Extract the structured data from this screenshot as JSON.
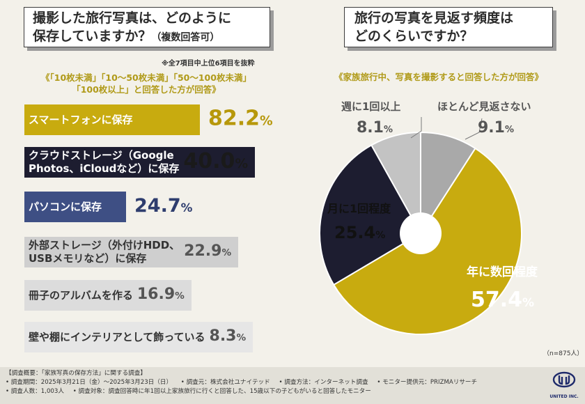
{
  "left": {
    "question_line1": "撮影した旅行写真は、どのように",
    "question_line2": "保存していますか？",
    "question_suffix": "（複数回答可）",
    "note": "※全7項目中上位6項目を抜粋",
    "filter_line1": "《「10枚未満」「10～50枚未満」「50～100枚未満」",
    "filter_line2": "「100枚以上」と回答した方が回答》"
  },
  "chart_data": [
    {
      "type": "bar",
      "orientation": "horizontal",
      "categories": [
        "スマートフォンに保存",
        "クラウドストレージ（Google Photos、iCloudなど）に保存",
        "パソコンに保存",
        "外部ストレージ（外付けHDD、USBメモリなど）に保存",
        "冊子のアルバムを作る",
        "壁や棚にインテリアとして飾っている"
      ],
      "values": [
        82.2,
        40.0,
        24.7,
        22.9,
        16.9,
        8.3
      ],
      "unit": "%",
      "bars": [
        {
          "line1": "スマートフォンに保存",
          "line2": "",
          "value": "82.2",
          "color": "#c8ab0f"
        },
        {
          "line1": "クラウドストレージ（Google",
          "line2": "Photos、iCloudなど）に保存",
          "value": "40.0",
          "color": "#1d1d30"
        },
        {
          "line1": "パソコンに保存",
          "line2": "",
          "value": "24.7",
          "color": "#3e4f84"
        },
        {
          "line1": "外部ストレージ（外付けHDD、",
          "line2": "USBメモリなど）に保存",
          "value": "22.9",
          "color": "#cfcfcf"
        },
        {
          "line1": "冊子のアルバムを作る",
          "line2": "",
          "value": "16.9",
          "color": "#dcdcdc"
        },
        {
          "line1": "壁や棚にインテリアとして飾っている",
          "line2": "",
          "value": "8.3",
          "color": "#e6e6e6"
        }
      ]
    },
    {
      "type": "pie",
      "donut": true,
      "title": "旅行の写真を見返す頻度はどのくらいですか？",
      "categories": [
        "ほとんど見返さない",
        "年に数回程度",
        "月に1回程度",
        "週に1回以上"
      ],
      "values": [
        9.1,
        57.4,
        25.4,
        8.1
      ],
      "colors": [
        "#a9a9a9",
        "#c8ab0f",
        "#1d1d30",
        "#c3c3c3"
      ],
      "n_label": "（n=875人）"
    }
  ],
  "right": {
    "question_line1": "旅行の写真を見返す頻度は",
    "question_line2": "どのくらいですか？",
    "filter": "《家族旅行中、写真を撮影すると回答した方が回答》",
    "n_label": "（n=875人）",
    "slice_labels": {
      "rarely": "ほとんど見返さない",
      "few_per_year": "年に数回程度",
      "monthly": "月に1回程度",
      "weekly": "週に1回以上"
    },
    "slice_values": {
      "rarely": "9.1",
      "few_per_year": "57.4",
      "monthly": "25.4",
      "weekly": "8.1"
    },
    "pct": "%"
  },
  "footer": {
    "line1": "【調査概要：「家族写真の保存方法」に関する調査】",
    "period": "• 調査期間：2025年3月21日（金）～2025年3月23日（日）",
    "org": "• 調査元：株式会社ユナイテッド",
    "method": "• 調査方法：インターネット調査",
    "provider": "• モニター提供元：PRIZMAリサーチ",
    "count": "• 調査人数：1,003人",
    "target": "• 調査対象：調査回答時に年1回以上家族旅行に行くと回答した、15歳以下の子どもがいると回答したモニター",
    "logo_text": "UNITED INC."
  }
}
